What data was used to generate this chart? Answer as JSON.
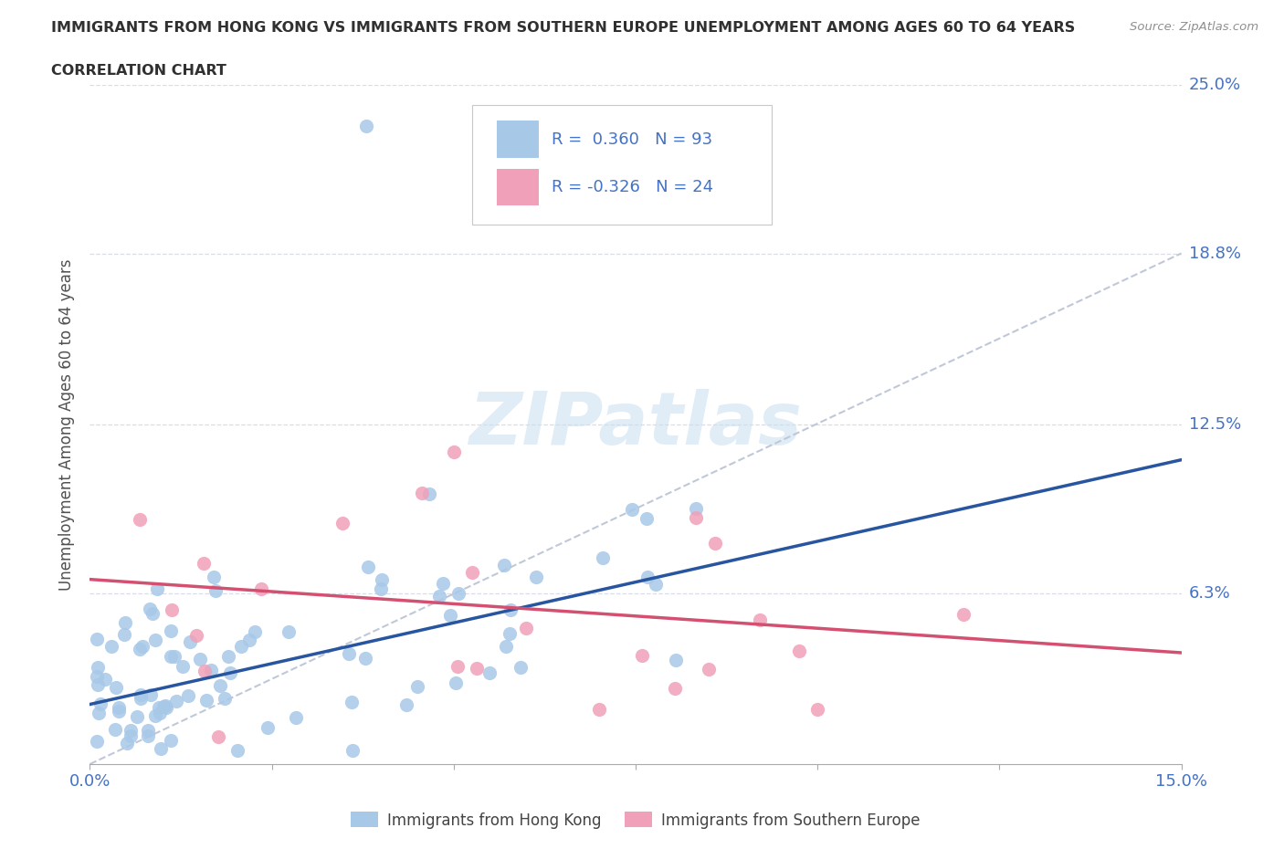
{
  "title_line1": "IMMIGRANTS FROM HONG KONG VS IMMIGRANTS FROM SOUTHERN EUROPE UNEMPLOYMENT AMONG AGES 60 TO 64 YEARS",
  "title_line2": "CORRELATION CHART",
  "source": "Source: ZipAtlas.com",
  "ylabel": "Unemployment Among Ages 60 to 64 years",
  "xlim": [
    0.0,
    0.15
  ],
  "ylim": [
    0.0,
    0.25
  ],
  "ytick_labels": [
    "6.3%",
    "12.5%",
    "18.8%",
    "25.0%"
  ],
  "yticks": [
    0.063,
    0.125,
    0.188,
    0.25
  ],
  "hk_r": 0.36,
  "hk_n": 93,
  "se_r": -0.326,
  "se_n": 24,
  "hk_color": "#a8c8e8",
  "se_color": "#f0a0b8",
  "hk_line_color": "#2855a0",
  "se_line_color": "#d45070",
  "diag_line_color": "#c0c8d8",
  "watermark": "ZIPatlas",
  "background_color": "#ffffff",
  "grid_color": "#d8dde8",
  "title_color": "#303030",
  "source_color": "#909090",
  "axis_label_color": "#505050",
  "tick_label_color": "#4472c4",
  "legend_border_color": "#c8c8c8"
}
